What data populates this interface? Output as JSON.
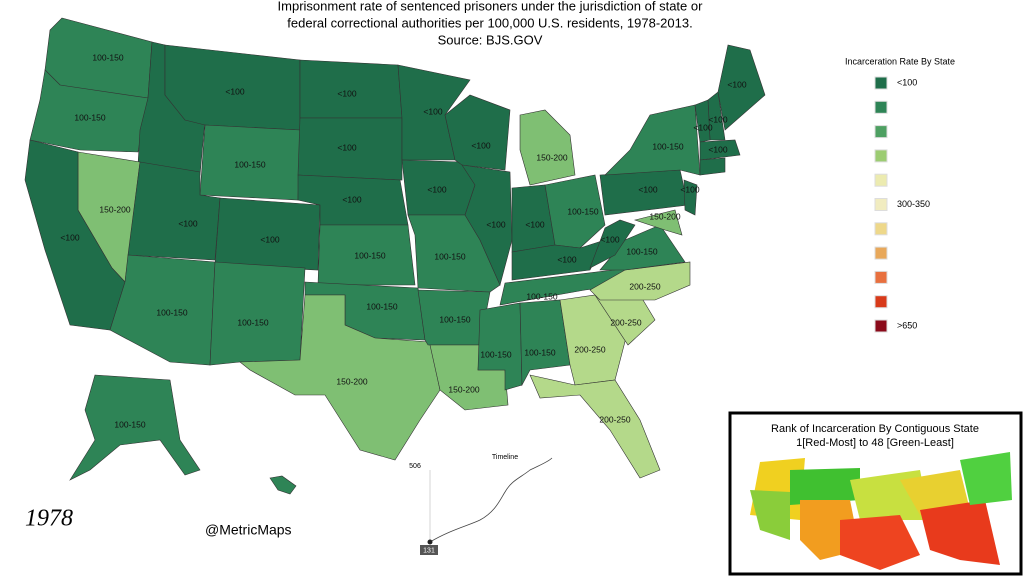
{
  "title_lines": [
    "Imprisonment rate of sentenced prisoners under the jurisdiction of state or",
    "federal correctional authorities per 100,000 U.S. residents, 1978-2013.",
    "Source: BJS.GOV"
  ],
  "legend": {
    "title": "Incarceration Rate By State",
    "items": [
      {
        "color": "#1f6e4a",
        "label": "<100"
      },
      {
        "color": "#2e8456"
      },
      {
        "color": "#4ea062"
      },
      {
        "color": "#9ccc72"
      },
      {
        "color": "#ecebb0"
      },
      {
        "color": "#f1ecc0",
        "label": "300-350"
      },
      {
        "color": "#eed88a"
      },
      {
        "color": "#e8a85a"
      },
      {
        "color": "#e8703e"
      },
      {
        "color": "#d83a1a"
      },
      {
        "color": "#8b0a1a",
        "label": ">650"
      }
    ]
  },
  "states": [
    {
      "label": "100-150",
      "color": "#2e8456"
    },
    {
      "label": "100-150",
      "color": "#2e8456"
    },
    {
      "color": "#1f6e4a"
    },
    {
      "label": "<100",
      "color": "#1f6e4a"
    },
    {
      "label": "100-150",
      "color": "#2e8456"
    },
    {
      "label": "150-200",
      "color": "#7fbf73"
    },
    {
      "label": "<100",
      "color": "#1f6e4a"
    },
    {
      "label": "<100",
      "color": "#1f6e4a"
    },
    {
      "label": "<100",
      "color": "#1f6e4a"
    },
    {
      "label": "100-150",
      "color": "#2e8456"
    },
    {
      "label": "100-150",
      "color": "#2e8456"
    },
    {
      "label": "<100",
      "color": "#1f6e4a"
    },
    {
      "label": "<100",
      "color": "#1f6e4a"
    },
    {
      "label": "<100",
      "color": "#1f6e4a"
    },
    {
      "label": "100-150",
      "color": "#2e8456"
    },
    {
      "label": "100-150",
      "color": "#2e8456"
    },
    {
      "label": "150-200",
      "color": "#7fbf73"
    },
    {
      "label": "<100",
      "color": "#1f6e4a"
    },
    {
      "label": "<100",
      "color": "#1f6e4a"
    },
    {
      "label": "100-150",
      "color": "#2e8456"
    },
    {
      "label": "100-150",
      "color": "#2e8456"
    },
    {
      "label": "150-200",
      "color": "#7fbf73"
    },
    {
      "label": "<100",
      "color": "#1f6e4a"
    },
    {
      "label": "<100",
      "color": "#1f6e4a"
    },
    {
      "label": "150-200",
      "color": "#7fbf73"
    },
    {
      "label": "<100",
      "color": "#1f6e4a"
    },
    {
      "label": "100-150",
      "color": "#2e8456"
    },
    {
      "label": "<100",
      "color": "#1f6e4a"
    },
    {
      "label": "100-150",
      "color": "#2e8456"
    },
    {
      "label": "100-150",
      "color": "#2e8456"
    },
    {
      "label": "100-150",
      "color": "#2e8456"
    },
    {
      "label": "200-250",
      "color": "#b4d98a"
    },
    {
      "label": "200-250",
      "color": "#b4d98a"
    },
    {
      "label": "200-250",
      "color": "#b4d98a"
    },
    {
      "label": "200-250",
      "color": "#b4d98a"
    },
    {
      "label": "100-150",
      "color": "#2e8456"
    },
    {
      "label": "<100",
      "color": "#1f6e4a"
    },
    {
      "label": "<100",
      "color": "#1f6e4a"
    },
    {
      "label": "100-150",
      "color": "#2e8456"
    },
    {
      "label": "150-200",
      "color": "#7fbf73"
    },
    {
      "label": "<100",
      "color": "#1f6e4a"
    },
    {
      "label": "<100",
      "color": "#1f6e4a"
    },
    {
      "label": "<100",
      "color": "#1f6e4a"
    },
    {
      "label": "<100",
      "color": "#1f6e4a"
    },
    {
      "label": "<100",
      "color": "#1f6e4a"
    },
    {
      "color": "#1f6e4a"
    },
    {
      "label": "100-150",
      "color": "#2e8456"
    },
    {
      "color": "#2e8456"
    }
  ],
  "year": "1978",
  "credit": "@MetricMaps",
  "timeline": {
    "title": "Timeline",
    "max": 506,
    "min": 131
  },
  "inset": {
    "title_lines": [
      "Rank of Incarceration By Contiguous State",
      "1[Red-Most] to 48 [Green-Least]"
    ]
  }
}
